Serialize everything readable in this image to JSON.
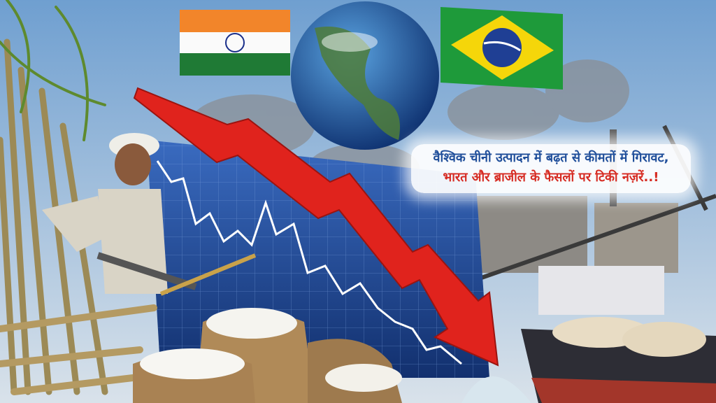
{
  "caption": {
    "line1": "वैश्विक चीनी उत्पादन में बढ़त से कीमतों में गिरावट,",
    "line2": "भारत और ब्राजील के फैसलों पर टिकी नज़रें..!"
  },
  "colors": {
    "line1": "#1f4e9a",
    "line2": "#d62b22",
    "arrow": "#e0231d",
    "chart_bg": "#1b3f86"
  },
  "elements": [
    "india-flag",
    "globe",
    "brazil-flag",
    "sugarcane-farmer",
    "sugar-sacks",
    "falling-price-arrow",
    "sugar-factory",
    "cargo-ship"
  ]
}
